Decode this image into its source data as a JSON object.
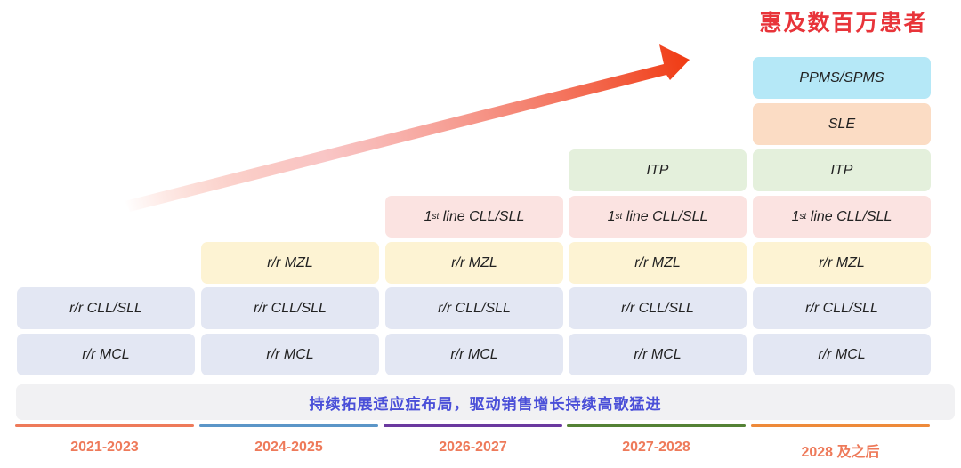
{
  "title": "惠及数百万患者",
  "banner": "持续拓展适应症布局，驱动销售增长持续高歌猛进",
  "colors": {
    "title": "#e8343a",
    "arrow": "#f03a12",
    "banner_text": "#4a4fd8",
    "MCL": "#e3e7f3",
    "CLL": "#e3e7f3",
    "MZL": "#fdf3d3",
    "FIRST": "#fbe3e1",
    "ITP": "#e4f0dc",
    "SLE": "#fbdcc4",
    "PPMS": "#b5e8f7"
  },
  "labels": {
    "MCL": "r/r MCL",
    "CLL": "r/r CLL/SLL",
    "MZL": "r/r MZL",
    "FIRST_num": "1",
    "FIRST_sup": "st",
    "FIRST_rest": " line CLL/SLL",
    "ITP": "ITP",
    "SLE": "SLE",
    "PPMS": "PPMS/SPMS"
  },
  "periods": [
    {
      "label": "2021-2023",
      "color": "#ee7a5a",
      "indications": [
        "MCL",
        "CLL"
      ]
    },
    {
      "label": "2024-2025",
      "color": "#5b96c8",
      "indications": [
        "MCL",
        "CLL",
        "MZL"
      ]
    },
    {
      "label": "2026-2027",
      "color": "#6b3aa0",
      "indications": [
        "MCL",
        "CLL",
        "MZL",
        "FIRST"
      ]
    },
    {
      "label": "2027-2028",
      "color": "#548235",
      "indications": [
        "MCL",
        "CLL",
        "MZL",
        "FIRST",
        "ITP"
      ]
    },
    {
      "label": "2028 及之后",
      "color": "#ee8a3a",
      "indications": [
        "MCL",
        "CLL",
        "MZL",
        "FIRST",
        "ITP",
        "SLE",
        "PPMS"
      ]
    }
  ]
}
